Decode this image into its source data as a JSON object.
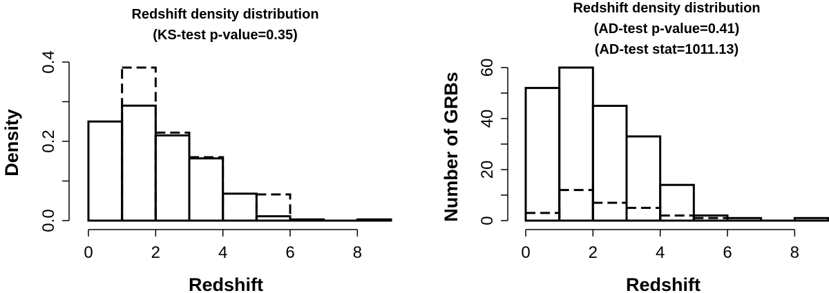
{
  "chart_data": [
    {
      "type": "bar",
      "title": "Redshift density distribution",
      "subtitle": [
        "(KS-test p-value=0.35)"
      ],
      "xlabel": "Redshift",
      "ylabel": "Density",
      "xlim": [
        0,
        9
      ],
      "ylim": [
        0,
        0.4
      ],
      "bin_edges": [
        0,
        1,
        2,
        3,
        4,
        5,
        6,
        7,
        8,
        9
      ],
      "x_ticks": [
        "0",
        "2",
        "4",
        "6",
        "8"
      ],
      "y_ticks": [
        "0.0",
        "0.2",
        "0.4"
      ],
      "series": [
        {
          "style": "solid",
          "values": [
            0.25,
            0.29,
            0.215,
            0.157,
            0.068,
            0.011,
            0.003,
            0.0,
            0.003
          ]
        },
        {
          "style": "dashed",
          "values": [
            0.0,
            0.386,
            0.222,
            0.16,
            0.0,
            0.066,
            0.0,
            0.0,
            0.0
          ]
        }
      ],
      "grid": false
    },
    {
      "type": "bar",
      "title": "Redshift density distribution",
      "subtitle": [
        "(AD-test p-value=0.41)",
        "(AD-test stat=1011.13)"
      ],
      "xlabel": "Redshift",
      "ylabel": "Number of GRBs",
      "xlim": [
        0,
        9
      ],
      "ylim": [
        0,
        60
      ],
      "bin_edges": [
        0,
        1,
        2,
        3,
        4,
        5,
        6,
        7,
        8,
        9
      ],
      "x_ticks": [
        "0",
        "2",
        "4",
        "6",
        "8"
      ],
      "y_ticks": [
        "0",
        "20",
        "40",
        "60"
      ],
      "series": [
        {
          "style": "solid",
          "values": [
            52,
            60,
            45,
            33,
            14,
            2,
            1,
            0,
            1
          ]
        },
        {
          "style": "dashed",
          "values": [
            3,
            12,
            7,
            5,
            2,
            1,
            0,
            0,
            0
          ]
        }
      ],
      "grid": false
    }
  ]
}
